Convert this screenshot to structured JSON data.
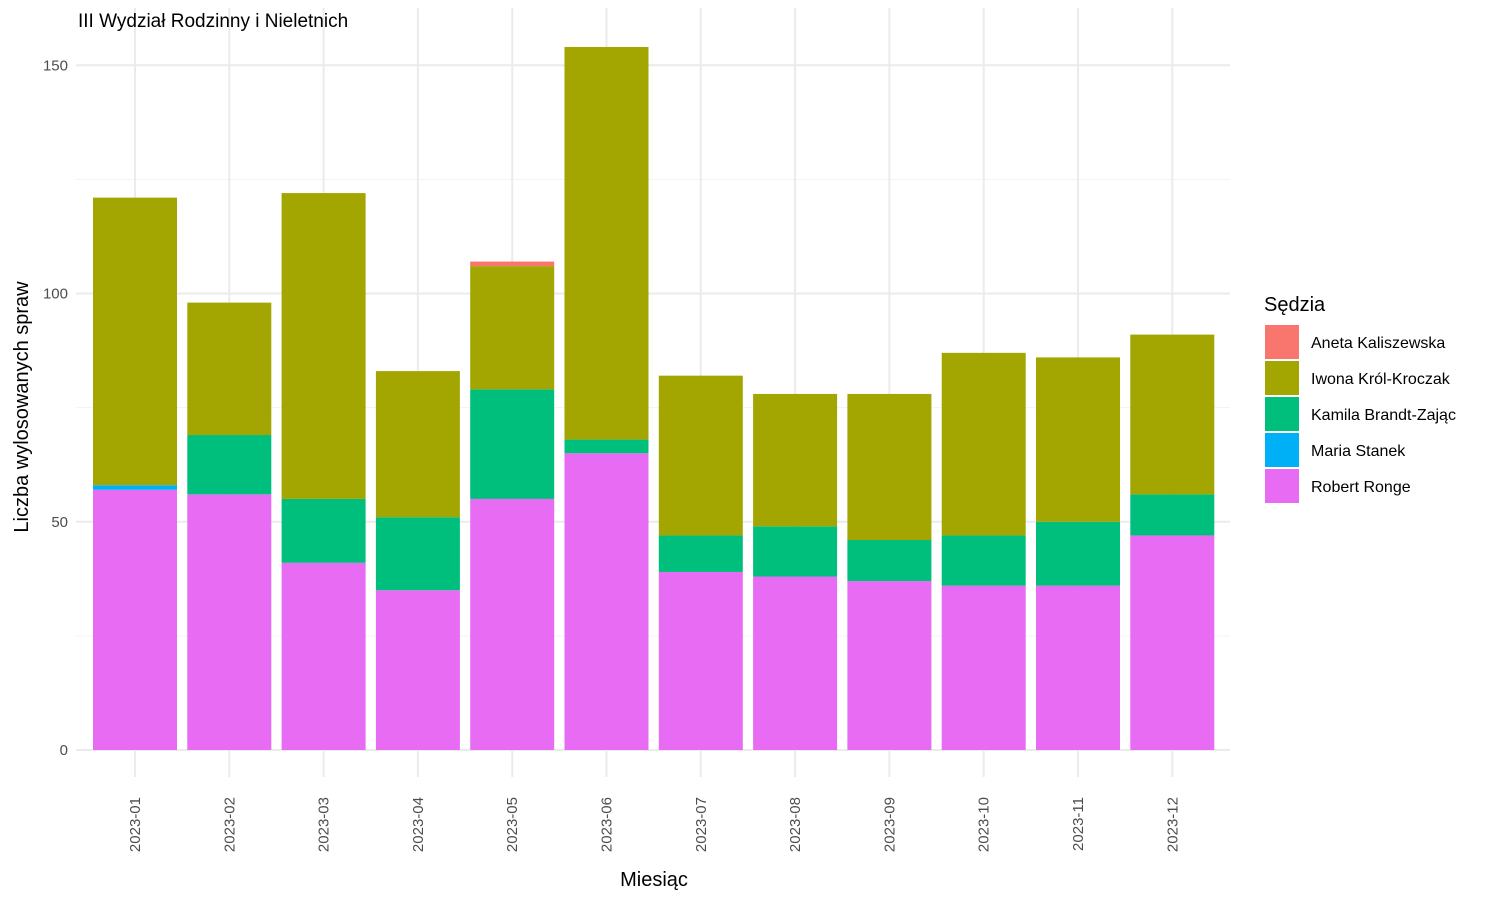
{
  "chart_data": {
    "type": "bar",
    "stacked": true,
    "title": "III Wydział Rodzinny i Nieletnich",
    "xlabel": "Miesiąc",
    "ylabel": "Liczba wylosowanych spraw",
    "ylim": [
      0,
      160
    ],
    "yticks": [
      0,
      50,
      100,
      150
    ],
    "grid": true,
    "legend": {
      "title": "Sędzia",
      "position": "right"
    },
    "categories": [
      "2023-01",
      "2023-02",
      "2023-03",
      "2023-04",
      "2023-05",
      "2023-06",
      "2023-07",
      "2023-08",
      "2023-09",
      "2023-10",
      "2023-11",
      "2023-12"
    ],
    "series": [
      {
        "name": "Robert Ronge",
        "color": "#E76BF3",
        "values": [
          57,
          56,
          41,
          35,
          55,
          65,
          39,
          38,
          37,
          36,
          36,
          47
        ]
      },
      {
        "name": "Maria Stanek",
        "color": "#00B0F6",
        "values": [
          1,
          0,
          0,
          0,
          0,
          0,
          0,
          0,
          0,
          0,
          0,
          0
        ]
      },
      {
        "name": "Kamila Brandt-Zając",
        "color": "#00BF7D",
        "values": [
          0,
          13,
          14,
          16,
          24,
          3,
          8,
          11,
          9,
          11,
          14,
          9
        ]
      },
      {
        "name": "Iwona Król-Kroczak",
        "color": "#A3A500",
        "values": [
          63,
          29,
          67,
          32,
          27,
          86,
          35,
          29,
          32,
          40,
          36,
          35
        ]
      },
      {
        "name": "Aneta Kaliszewska",
        "color": "#F8766D",
        "values": [
          0,
          0,
          0,
          0,
          1,
          0,
          0,
          0,
          0,
          0,
          0,
          0
        ]
      }
    ],
    "legend_order": [
      "Aneta Kaliszewska",
      "Iwona Król-Kroczak",
      "Kamila Brandt-Zając",
      "Maria Stanek",
      "Robert Ronge"
    ]
  }
}
